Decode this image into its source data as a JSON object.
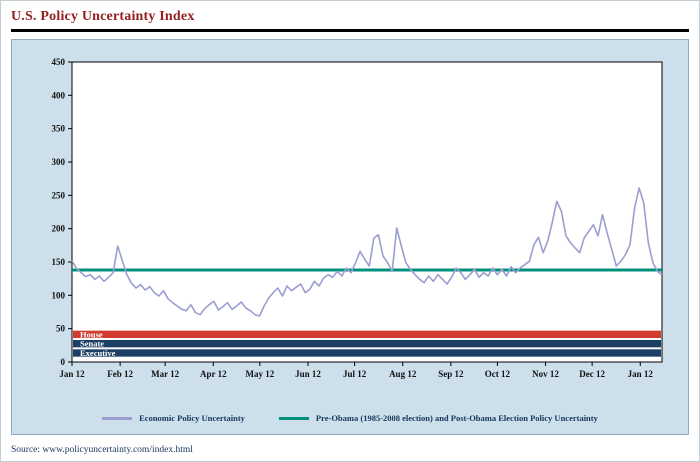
{
  "title": "U.S. Policy Uncertainty Index",
  "source": "Source: www.policyuncertainty.com/index.html",
  "colors": {
    "title": "#931f1f",
    "panel_background": "#cddfeb",
    "economic_line": "#9b9ed0",
    "baseline_line": "#00907e",
    "house_band": "#d23b2f",
    "senate_band": "#1c3f66",
    "executive_band": "#1c3f66"
  },
  "legend": [
    {
      "label": "Economic Policy Uncertainty",
      "color": "#9b9ed0"
    },
    {
      "label": "Pre-Obama (1985-2008 election) and Post-Obama Election Policy Uncertainty",
      "color": "#00907e"
    }
  ],
  "chart_data": {
    "type": "line",
    "title": "U.S. Policy Uncertainty Index",
    "ylim": [
      0,
      450
    ],
    "ytick_step": 50,
    "grid": false,
    "legend_position": "bottom",
    "x_tick_labels": [
      "Jan 12",
      "Feb 12",
      "Mar 12",
      "Apr 12",
      "May 12",
      "Jun 12",
      "Jul 12",
      "Aug 12",
      "Sep 12",
      "Oct 12",
      "Nov 12",
      "Dec 12",
      "Jan 12"
    ],
    "month_start_days": [
      0,
      31,
      60,
      91,
      121,
      152,
      182,
      213,
      244,
      274,
      305,
      335,
      366
    ],
    "total_days": 380,
    "series": [
      {
        "name": "Economic Policy Uncertainty",
        "color": "#9b9ed0",
        "values": [
          152,
          140,
          134,
          128,
          131,
          124,
          129,
          121,
          127,
          134,
          174,
          152,
          131,
          118,
          111,
          116,
          108,
          113,
          104,
          99,
          107,
          95,
          89,
          84,
          79,
          77,
          86,
          74,
          71,
          80,
          86,
          91,
          78,
          83,
          89,
          79,
          84,
          90,
          81,
          77,
          71,
          69,
          84,
          96,
          104,
          111,
          99,
          114,
          107,
          112,
          117,
          104,
          109,
          121,
          114,
          126,
          131,
          127,
          136,
          129,
          141,
          134,
          149,
          166,
          154,
          144,
          186,
          191,
          159,
          149,
          136,
          201,
          174,
          149,
          139,
          131,
          124,
          119,
          129,
          121,
          131,
          124,
          117,
          127,
          141,
          134,
          124,
          131,
          139,
          127,
          134,
          129,
          141,
          131,
          139,
          129,
          143,
          134,
          141,
          146,
          151,
          176,
          187,
          164,
          181,
          209,
          241,
          226,
          189,
          179,
          171,
          164,
          186,
          196,
          206,
          189,
          221,
          194,
          169,
          144,
          151,
          161,
          176,
          231,
          261,
          239,
          179,
          149,
          136,
          131
        ]
      },
      {
        "name": "Pre-Obama (1985-2008 election) and Post-Obama Election Policy Uncertainty",
        "color": "#00907e",
        "constant": 138
      }
    ],
    "bands": [
      {
        "label": "House",
        "color": "#d23b2f",
        "y_from": 36,
        "y_to": 47
      },
      {
        "label": "Senate",
        "color": "#1c3f66",
        "y_from": 22,
        "y_to": 33
      },
      {
        "label": "Executive",
        "color": "#1c3f66",
        "y_from": 8,
        "y_to": 19
      }
    ]
  }
}
